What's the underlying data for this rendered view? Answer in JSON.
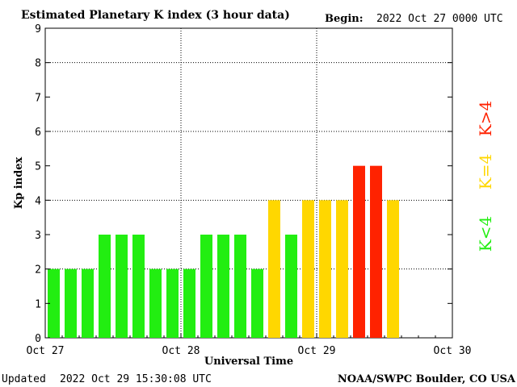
{
  "header": {
    "title": "Estimated Planetary K index (3 hour data)",
    "begin_label": "Begin:",
    "begin_value": "2022 Oct 27 0000 UTC"
  },
  "footer": {
    "updated_label": "Updated",
    "updated_value": "2022 Oct 29 15:30:08 UTC",
    "credit": "NOAA/SWPC Boulder, CO USA"
  },
  "legend": [
    {
      "label": "K<4",
      "color": "#22ee11"
    },
    {
      "label": "K=4",
      "color": "#ffd700"
    },
    {
      "label": "K>4",
      "color": "#ff2200"
    }
  ],
  "chart_data": {
    "type": "bar",
    "title": "Estimated Planetary K index (3 hour data)",
    "xlabel": "Universal Time",
    "ylabel": "Kp index",
    "ylim": [
      0,
      9
    ],
    "yticks": [
      0,
      1,
      2,
      3,
      4,
      5,
      6,
      7,
      8,
      9
    ],
    "xticks": [
      "Oct 27",
      "Oct 28",
      "Oct 29",
      "Oct 30"
    ],
    "bins_per_day": 8,
    "grid": true,
    "colors": {
      "below4": "#22ee11",
      "equal4": "#ffd700",
      "above4": "#ff2200"
    },
    "values": [
      2,
      2,
      2,
      3,
      3,
      3,
      2,
      2,
      2,
      3,
      3,
      3,
      2,
      4,
      3,
      4,
      4,
      4,
      5,
      5,
      4
    ]
  }
}
